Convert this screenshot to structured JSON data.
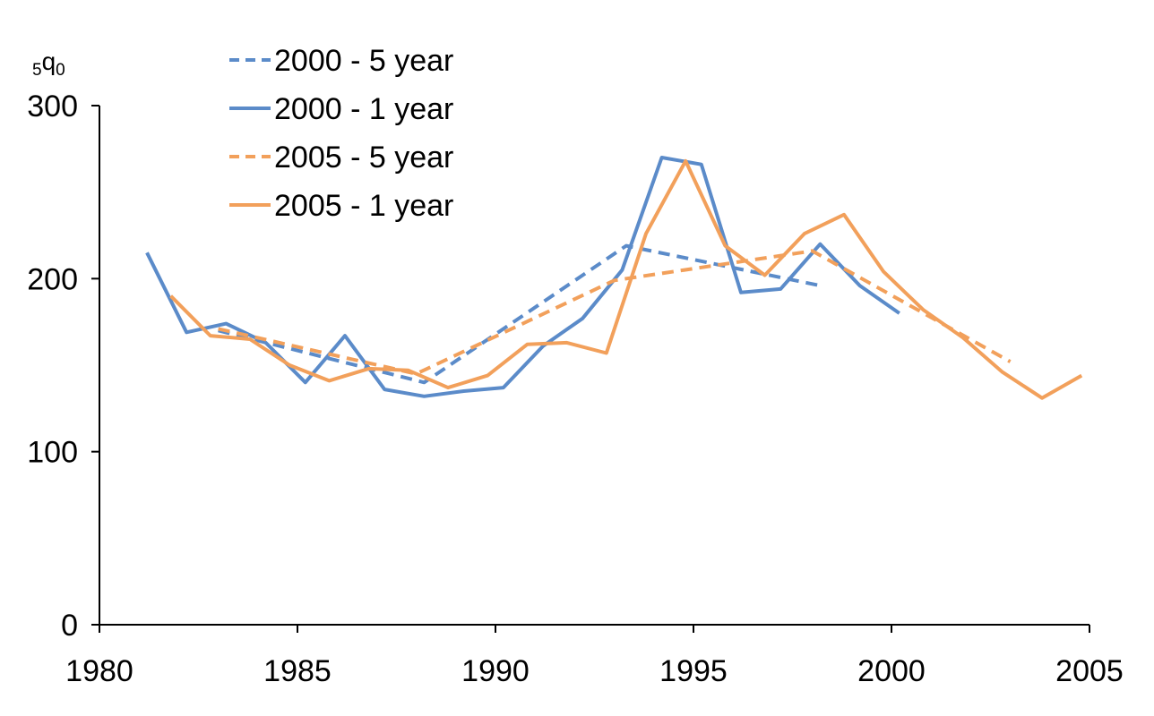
{
  "chart_data": {
    "type": "line",
    "ylabel_main": "q",
    "ylabel_sub_left": "5",
    "ylabel_sub_right": "0",
    "xlim": [
      1980,
      2005
    ],
    "ylim": [
      0,
      300
    ],
    "x_ticks": [
      1980,
      1985,
      1990,
      1995,
      2000,
      2005
    ],
    "y_ticks": [
      0,
      100,
      200,
      300
    ],
    "grid": false,
    "legend_position": "top-left",
    "series": [
      {
        "name": "2000 - 5 year",
        "color": "#5B8BC9",
        "dash": true,
        "points": [
          [
            1983,
            170
          ],
          [
            1988.2,
            140
          ],
          [
            1993.3,
            219
          ],
          [
            1998.2,
            196
          ]
        ]
      },
      {
        "name": "2000 - 1 year",
        "color": "#5B8BC9",
        "dash": false,
        "points": [
          [
            1981.2,
            215
          ],
          [
            1982.2,
            169
          ],
          [
            1983.2,
            174
          ],
          [
            1984.2,
            163
          ],
          [
            1985.2,
            140
          ],
          [
            1986.2,
            167
          ],
          [
            1987.2,
            136
          ],
          [
            1988.2,
            132
          ],
          [
            1989.2,
            135
          ],
          [
            1990.2,
            137
          ],
          [
            1991.2,
            161
          ],
          [
            1992.2,
            177
          ],
          [
            1993.2,
            205
          ],
          [
            1994.2,
            270
          ],
          [
            1995.2,
            266
          ],
          [
            1996.2,
            192
          ],
          [
            1997.2,
            194
          ],
          [
            1998.2,
            220
          ],
          [
            1999.2,
            196
          ],
          [
            2000.2,
            180
          ]
        ]
      },
      {
        "name": "2005 - 5 year",
        "color": "#F2A05B",
        "dash": true,
        "points": [
          [
            1983,
            171
          ],
          [
            1988,
            145
          ],
          [
            1993,
            199
          ],
          [
            1998,
            216
          ],
          [
            2003,
            152
          ]
        ]
      },
      {
        "name": "2005 - 1 year",
        "color": "#F2A05B",
        "dash": false,
        "points": [
          [
            1981.8,
            190
          ],
          [
            1982.8,
            167
          ],
          [
            1983.8,
            165
          ],
          [
            1984.8,
            150
          ],
          [
            1985.8,
            141
          ],
          [
            1986.8,
            148
          ],
          [
            1987.8,
            147
          ],
          [
            1988.8,
            137
          ],
          [
            1989.8,
            144
          ],
          [
            1990.8,
            162
          ],
          [
            1991.8,
            163
          ],
          [
            1992.8,
            157
          ],
          [
            1993.8,
            226
          ],
          [
            1994.8,
            268
          ],
          [
            1995.8,
            219
          ],
          [
            1996.8,
            202
          ],
          [
            1997.8,
            226
          ],
          [
            1998.8,
            237
          ],
          [
            1999.8,
            204
          ],
          [
            2000.8,
            182
          ],
          [
            2001.8,
            166
          ],
          [
            2002.8,
            146
          ],
          [
            2003.8,
            131
          ],
          [
            2004.8,
            144
          ]
        ]
      }
    ]
  }
}
